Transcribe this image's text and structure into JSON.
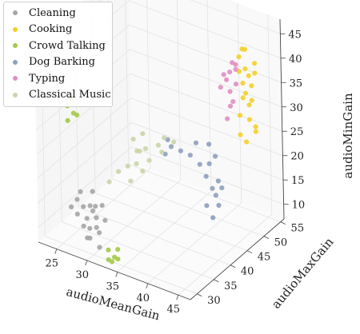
{
  "chart_data": {
    "type": "scatter",
    "projection": "3d",
    "xlabel": "audioMeanGain",
    "ylabel": "audioMaxGain",
    "zlabel": "audioMinGain",
    "x_ticks": [
      "25",
      "30",
      "35",
      "40",
      "45"
    ],
    "y_ticks": [
      "30",
      "35",
      "40",
      "45",
      "50",
      "55"
    ],
    "z_ticks": [
      "10",
      "15",
      "20",
      "25",
      "30",
      "35",
      "40",
      "45"
    ],
    "xlim": [
      22,
      47
    ],
    "ylim": [
      28,
      56
    ],
    "zlim": [
      7,
      48
    ],
    "grid": true,
    "legend_position": "top-left",
    "series": [
      {
        "name": "Cleaning",
        "color": "#a5a5a5",
        "points": [
          [
            28,
            29,
            15
          ],
          [
            29,
            29,
            17
          ],
          [
            29,
            30,
            14
          ],
          [
            30,
            29,
            13
          ],
          [
            30,
            30,
            16
          ],
          [
            31,
            29,
            18
          ],
          [
            31,
            30,
            12
          ],
          [
            28,
            30,
            19
          ],
          [
            29,
            31,
            16
          ],
          [
            30,
            31,
            14
          ],
          [
            31,
            31,
            17
          ],
          [
            29,
            30,
            10
          ],
          [
            30,
            29,
            11
          ],
          [
            28,
            29,
            18
          ],
          [
            27,
            29,
            16
          ],
          [
            32,
            30,
            15
          ],
          [
            30,
            30,
            20
          ],
          [
            29,
            29,
            13
          ],
          [
            31,
            30,
            9
          ],
          [
            30,
            31,
            12
          ]
        ]
      },
      {
        "name": "Cooking",
        "color": "#f4cf2a",
        "points": [
          [
            44,
            49,
            43
          ],
          [
            45,
            49,
            41
          ],
          [
            45,
            50,
            39
          ],
          [
            44,
            50,
            37
          ],
          [
            46,
            49,
            35
          ],
          [
            45,
            50,
            33
          ],
          [
            44,
            49,
            31
          ],
          [
            46,
            50,
            28
          ],
          [
            45,
            49,
            26
          ],
          [
            44,
            50,
            44
          ],
          [
            46,
            50,
            42
          ],
          [
            45,
            49,
            36
          ],
          [
            44,
            49,
            40
          ],
          [
            46,
            49,
            38
          ],
          [
            45,
            50,
            30
          ],
          [
            44,
            50,
            34
          ],
          [
            46,
            50,
            29
          ],
          [
            45,
            49,
            45
          ],
          [
            44,
            49,
            27
          ],
          [
            46,
            50,
            40
          ]
        ]
      },
      {
        "name": "Crowd Talking",
        "color": "#a3c94a",
        "points": [
          [
            25,
            32,
            34
          ],
          [
            26,
            32,
            33
          ],
          [
            25,
            33,
            35
          ],
          [
            26,
            33,
            32
          ],
          [
            25,
            32,
            31
          ],
          [
            26,
            32,
            36
          ],
          [
            33,
            29,
            8
          ],
          [
            34,
            29,
            9
          ],
          [
            33,
            30,
            7
          ],
          [
            34,
            30,
            8
          ],
          [
            33,
            29,
            10
          ],
          [
            34,
            30,
            10
          ]
        ]
      },
      {
        "name": "Dog Barking",
        "color": "#8e9fbf",
        "points": [
          [
            41,
            44,
            20
          ],
          [
            42,
            44,
            18
          ],
          [
            41,
            45,
            22
          ],
          [
            42,
            45,
            16
          ],
          [
            43,
            44,
            20
          ],
          [
            41,
            44,
            14
          ],
          [
            42,
            45,
            24
          ],
          [
            43,
            45,
            18
          ],
          [
            40,
            44,
            22
          ],
          [
            42,
            44,
            12
          ],
          [
            41,
            45,
            26
          ],
          [
            43,
            44,
            15
          ],
          [
            39,
            43,
            24
          ],
          [
            40,
            43,
            27
          ],
          [
            38,
            42,
            25
          ],
          [
            37,
            41,
            26
          ],
          [
            36,
            41,
            24
          ],
          [
            37,
            40,
            28
          ]
        ]
      },
      {
        "name": "Typing",
        "color": "#e18ec3",
        "points": [
          [
            43,
            48,
            40
          ],
          [
            44,
            48,
            38
          ],
          [
            43,
            48,
            36
          ],
          [
            44,
            48,
            42
          ],
          [
            43,
            47,
            39
          ],
          [
            44,
            47,
            35
          ],
          [
            43,
            48,
            33
          ],
          [
            44,
            48,
            41
          ],
          [
            42,
            47,
            37
          ],
          [
            43,
            47,
            31
          ],
          [
            44,
            47,
            43
          ],
          [
            42,
            48,
            39
          ]
        ]
      },
      {
        "name": "Classical Music",
        "color": "#c9d5a7",
        "points": [
          [
            33,
            37,
            28
          ],
          [
            34,
            37,
            26
          ],
          [
            35,
            37,
            27
          ],
          [
            33,
            38,
            25
          ],
          [
            34,
            38,
            29
          ],
          [
            35,
            38,
            24
          ],
          [
            36,
            39,
            27
          ],
          [
            37,
            39,
            29
          ],
          [
            36,
            40,
            25
          ],
          [
            38,
            40,
            28
          ],
          [
            32,
            37,
            22
          ],
          [
            33,
            36,
            20
          ],
          [
            31,
            36,
            21
          ],
          [
            30,
            35,
            19
          ],
          [
            35,
            36,
            23
          ],
          [
            34,
            36,
            24
          ]
        ]
      }
    ]
  }
}
